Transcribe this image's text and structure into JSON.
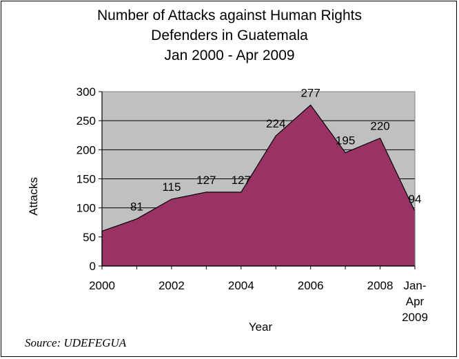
{
  "chart_data": {
    "type": "area",
    "title_lines": [
      "Number of Attacks against Human Rights",
      "Defenders in Guatemala",
      "Jan 2000 - Apr 2009"
    ],
    "xlabel": "Year",
    "ylabel": "Attacks",
    "ylim": [
      0,
      300
    ],
    "yticks": [
      "0",
      "50",
      "100",
      "150",
      "200",
      "250",
      "300"
    ],
    "x": [
      "2000",
      "2001",
      "2002",
      "2003",
      "2004",
      "2005",
      "2006",
      "2007",
      "2008",
      "Jan-Apr 2009"
    ],
    "xtick_labels": [
      {
        "index": 0,
        "lines": [
          "2000"
        ]
      },
      {
        "index": 2,
        "lines": [
          "2002"
        ]
      },
      {
        "index": 4,
        "lines": [
          "2004"
        ]
      },
      {
        "index": 6,
        "lines": [
          "2006"
        ]
      },
      {
        "index": 8,
        "lines": [
          "2008"
        ]
      },
      {
        "index": 9,
        "lines": [
          "Jan-",
          "Apr",
          "2009"
        ]
      }
    ],
    "values": [
      60,
      81,
      115,
      127,
      127,
      224,
      277,
      195,
      220,
      94
    ],
    "data_labels": [
      {
        "index": 1,
        "text": "81"
      },
      {
        "index": 2,
        "text": "115"
      },
      {
        "index": 3,
        "text": "127"
      },
      {
        "index": 4,
        "text": "127"
      },
      {
        "index": 5,
        "text": "224"
      },
      {
        "index": 6,
        "text": "277"
      },
      {
        "index": 7,
        "text": "195"
      },
      {
        "index": 8,
        "text": "220"
      },
      {
        "index": 9,
        "text": "94"
      }
    ],
    "grid": true,
    "colors": {
      "fill": "#993366",
      "plot_bg": "#c0c0c0",
      "grid": "#000000"
    }
  },
  "source": "Source: UDEFEGUA"
}
